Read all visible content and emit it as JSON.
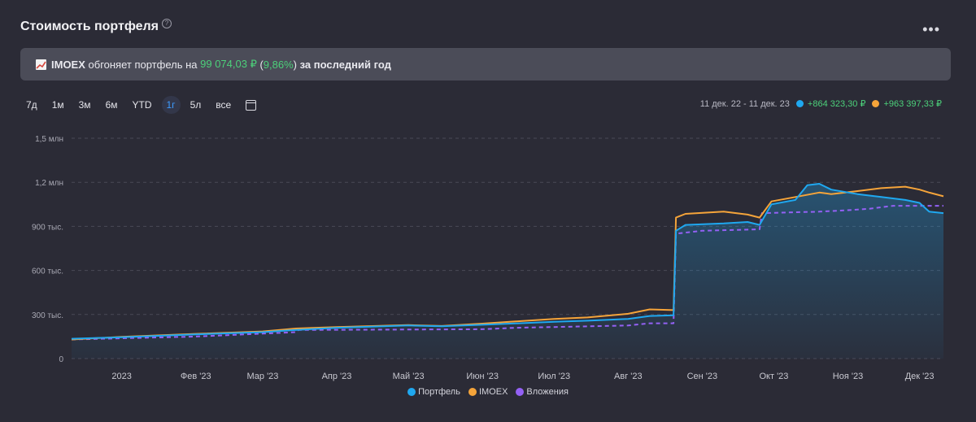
{
  "header": {
    "title": "Стоимость портфеля",
    "help_icon": "?",
    "more_icon": "•••"
  },
  "banner": {
    "ticker": "IMOEX",
    "text1": " обгоняет портфель на ",
    "diff": "99 074,03 ₽",
    "paren_open": " (",
    "pct": "9,86%",
    "paren_close": ")",
    "text2": " за последний год"
  },
  "periods": [
    "7д",
    "1м",
    "3м",
    "6м",
    "YTD",
    "1г",
    "5л",
    "все"
  ],
  "active_period": "1г",
  "summary": {
    "range": "11 дек. 22 - 11 дек. 23",
    "portfolio_change": "+864 323,30 ₽",
    "imoex_change": "+963 397,33 ₽"
  },
  "colors": {
    "portfolio": "#1fa8f0",
    "imoex": "#f5a43a",
    "investments": "#9461f5",
    "positive": "#4cd07a"
  },
  "chart_data": {
    "type": "line",
    "y_ticks": [
      {
        "value": 0,
        "label": "0"
      },
      {
        "value": 300000,
        "label": "300 тыс."
      },
      {
        "value": 600000,
        "label": "600 тыс."
      },
      {
        "value": 900000,
        "label": "900 тыс."
      },
      {
        "value": 1200000,
        "label": "1,2 млн"
      },
      {
        "value": 1500000,
        "label": "1,5 млн"
      }
    ],
    "ylim": [
      0,
      1500000
    ],
    "x_ticks": [
      {
        "date": "2023-01-01",
        "label": "2023"
      },
      {
        "date": "2023-02-01",
        "label": "Фев '23"
      },
      {
        "date": "2023-03-01",
        "label": "Мар '23"
      },
      {
        "date": "2023-04-01",
        "label": "Апр '23"
      },
      {
        "date": "2023-05-01",
        "label": "Май '23"
      },
      {
        "date": "2023-06-01",
        "label": "Июн '23"
      },
      {
        "date": "2023-07-01",
        "label": "Июл '23"
      },
      {
        "date": "2023-08-01",
        "label": "Авг '23"
      },
      {
        "date": "2023-09-01",
        "label": "Сен '23"
      },
      {
        "date": "2023-10-01",
        "label": "Окт '23"
      },
      {
        "date": "2023-11-01",
        "label": "Ноя '23"
      },
      {
        "date": "2023-12-01",
        "label": "Дек '23"
      }
    ],
    "xlim": [
      "2022-12-11",
      "2023-12-11"
    ],
    "grid": true,
    "legend_position": "bottom",
    "series": [
      {
        "name": "Портфель",
        "style": "solid-area",
        "points": [
          [
            "2022-12-11",
            135000
          ],
          [
            "2023-01-01",
            145000
          ],
          [
            "2023-02-01",
            165000
          ],
          [
            "2023-03-01",
            180000
          ],
          [
            "2023-03-15",
            195000
          ],
          [
            "2023-04-01",
            210000
          ],
          [
            "2023-05-01",
            225000
          ],
          [
            "2023-05-15",
            220000
          ],
          [
            "2023-06-01",
            230000
          ],
          [
            "2023-07-01",
            250000
          ],
          [
            "2023-07-15",
            258000
          ],
          [
            "2023-08-01",
            270000
          ],
          [
            "2023-08-10",
            290000
          ],
          [
            "2023-08-20",
            295000
          ],
          [
            "2023-08-21",
            870000
          ],
          [
            "2023-08-25",
            910000
          ],
          [
            "2023-09-10",
            920000
          ],
          [
            "2023-09-20",
            930000
          ],
          [
            "2023-09-25",
            910000
          ],
          [
            "2023-09-30",
            1050000
          ],
          [
            "2023-10-10",
            1080000
          ],
          [
            "2023-10-15",
            1180000
          ],
          [
            "2023-10-20",
            1190000
          ],
          [
            "2023-10-25",
            1150000
          ],
          [
            "2023-11-05",
            1120000
          ],
          [
            "2023-11-15",
            1100000
          ],
          [
            "2023-11-25",
            1080000
          ],
          [
            "2023-12-01",
            1060000
          ],
          [
            "2023-12-05",
            1000000
          ],
          [
            "2023-12-11",
            990000
          ]
        ]
      },
      {
        "name": "IMOEX",
        "style": "solid",
        "points": [
          [
            "2022-12-11",
            130000
          ],
          [
            "2023-01-01",
            148000
          ],
          [
            "2023-02-01",
            168000
          ],
          [
            "2023-03-01",
            185000
          ],
          [
            "2023-03-15",
            205000
          ],
          [
            "2023-04-01",
            215000
          ],
          [
            "2023-05-01",
            228000
          ],
          [
            "2023-05-15",
            222000
          ],
          [
            "2023-06-01",
            238000
          ],
          [
            "2023-07-01",
            270000
          ],
          [
            "2023-07-15",
            280000
          ],
          [
            "2023-08-01",
            305000
          ],
          [
            "2023-08-10",
            335000
          ],
          [
            "2023-08-20",
            330000
          ],
          [
            "2023-08-21",
            960000
          ],
          [
            "2023-08-25",
            985000
          ],
          [
            "2023-09-10",
            1000000
          ],
          [
            "2023-09-20",
            980000
          ],
          [
            "2023-09-25",
            960000
          ],
          [
            "2023-09-30",
            1070000
          ],
          [
            "2023-10-10",
            1100000
          ],
          [
            "2023-10-20",
            1130000
          ],
          [
            "2023-10-25",
            1120000
          ],
          [
            "2023-11-05",
            1140000
          ],
          [
            "2023-11-15",
            1160000
          ],
          [
            "2023-11-25",
            1170000
          ],
          [
            "2023-12-01",
            1150000
          ],
          [
            "2023-12-05",
            1130000
          ],
          [
            "2023-12-11",
            1105000
          ]
        ]
      },
      {
        "name": "Вложения",
        "style": "dashed",
        "points": [
          [
            "2022-12-11",
            130000
          ],
          [
            "2023-02-01",
            150000
          ],
          [
            "2023-03-01",
            170000
          ],
          [
            "2023-03-15",
            180000
          ],
          [
            "2023-03-16",
            195000
          ],
          [
            "2023-06-01",
            200000
          ],
          [
            "2023-06-15",
            210000
          ],
          [
            "2023-07-01",
            215000
          ],
          [
            "2023-08-01",
            225000
          ],
          [
            "2023-08-10",
            240000
          ],
          [
            "2023-08-20",
            240000
          ],
          [
            "2023-08-21",
            850000
          ],
          [
            "2023-09-01",
            870000
          ],
          [
            "2023-09-25",
            880000
          ],
          [
            "2023-09-26",
            990000
          ],
          [
            "2023-10-20",
            1000000
          ],
          [
            "2023-11-01",
            1010000
          ],
          [
            "2023-11-10",
            1020000
          ],
          [
            "2023-11-20",
            1040000
          ],
          [
            "2023-12-11",
            1040000
          ]
        ]
      }
    ]
  }
}
